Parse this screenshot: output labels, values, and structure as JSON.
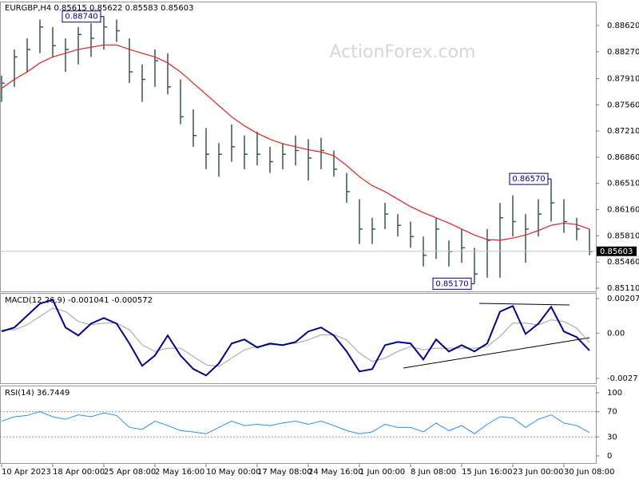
{
  "chart_data": [
    {
      "type": "ohlc",
      "title": "EURGBP,H4",
      "header_values": [
        0.85615,
        0.85622,
        0.85583,
        0.85603
      ],
      "watermark": "ActionForex.com",
      "categories": [
        "10 Apr 2023",
        null,
        null,
        null,
        "18 Apr 00:00",
        null,
        null,
        null,
        "25 Apr 08:00",
        null,
        null,
        null,
        "2 May 16:00",
        null,
        null,
        null,
        "10 May 00:00",
        null,
        null,
        null,
        "17 May 08:00",
        null,
        null,
        null,
        "24 May 16:00",
        null,
        null,
        null,
        "1 Jun 00:00",
        null,
        null,
        null,
        "8 Jun 08:00",
        null,
        null,
        null,
        "15 Jun 16:00",
        null,
        null,
        null,
        "23 Jun 00:00",
        null,
        null,
        null,
        "30 Jun 08:00",
        null,
        null
      ],
      "high": [
        0.8795,
        0.883,
        0.8845,
        0.887,
        0.886,
        0.8845,
        0.886,
        0.8865,
        0.8874,
        0.887,
        0.8845,
        0.881,
        0.883,
        0.8825,
        0.879,
        0.875,
        0.8725,
        0.8705,
        0.873,
        0.8715,
        0.872,
        0.87,
        0.8705,
        0.8715,
        0.871,
        0.8712,
        0.8695,
        0.8665,
        0.863,
        0.8605,
        0.8625,
        0.861,
        0.86,
        0.858,
        0.8605,
        0.8575,
        0.859,
        0.8565,
        0.859,
        0.8625,
        0.8635,
        0.861,
        0.863,
        0.8657,
        0.863,
        0.8605,
        0.859
      ],
      "low": [
        0.876,
        0.878,
        0.88,
        0.8825,
        0.882,
        0.88,
        0.881,
        0.882,
        0.883,
        0.884,
        0.8785,
        0.876,
        0.878,
        0.877,
        0.873,
        0.87,
        0.867,
        0.866,
        0.868,
        0.867,
        0.8675,
        0.8665,
        0.867,
        0.8675,
        0.8655,
        0.867,
        0.866,
        0.8625,
        0.857,
        0.857,
        0.859,
        0.858,
        0.8565,
        0.854,
        0.855,
        0.854,
        0.8545,
        0.8517,
        0.8525,
        0.8525,
        0.858,
        0.8545,
        0.858,
        0.86,
        0.8585,
        0.8575,
        0.8555
      ],
      "close": [
        0.8785,
        0.882,
        0.883,
        0.886,
        0.8835,
        0.883,
        0.885,
        0.8845,
        0.886,
        0.8855,
        0.88,
        0.879,
        0.8815,
        0.878,
        0.874,
        0.8715,
        0.869,
        0.869,
        0.87,
        0.869,
        0.869,
        0.868,
        0.869,
        0.8695,
        0.8685,
        0.8695,
        0.867,
        0.864,
        0.859,
        0.859,
        0.861,
        0.8595,
        0.858,
        0.8555,
        0.859,
        0.856,
        0.8565,
        0.853,
        0.8575,
        0.8605,
        0.86,
        0.859,
        0.861,
        0.8625,
        0.86,
        0.859,
        0.856
      ],
      "color": "#3b5656",
      "moving_average": {
        "color": "#e0201e",
        "values": [
          0.8778,
          0.879,
          0.88,
          0.8812,
          0.882,
          0.8825,
          0.883,
          0.8833,
          0.8836,
          0.8836,
          0.883,
          0.8825,
          0.882,
          0.8812,
          0.88,
          0.8785,
          0.877,
          0.8755,
          0.874,
          0.8728,
          0.8718,
          0.871,
          0.8704,
          0.87,
          0.8696,
          0.8693,
          0.8688,
          0.8675,
          0.866,
          0.8648,
          0.864,
          0.863,
          0.862,
          0.8612,
          0.8605,
          0.8598,
          0.859,
          0.8582,
          0.8576,
          0.8575,
          0.8578,
          0.8582,
          0.8588,
          0.8595,
          0.8598,
          0.8596,
          0.859
        ]
      },
      "ylim": [
        0.85067,
        0.88929
      ],
      "yticks": [
        {
          "value": 0.8862,
          "label": "0.88620"
        },
        {
          "value": 0.8827,
          "label": "0.88270"
        },
        {
          "value": 0.8791,
          "label": "0.87910"
        },
        {
          "value": 0.8756,
          "label": "0.87560"
        },
        {
          "value": 0.8721,
          "label": "0.87210"
        },
        {
          "value": 0.8686,
          "label": "0.86860"
        },
        {
          "value": 0.8651,
          "label": "0.86510"
        },
        {
          "value": 0.8616,
          "label": "0.86160"
        },
        {
          "value": 0.8581,
          "label": "0.85810"
        },
        {
          "value": 0.8546,
          "label": "0.85460"
        },
        {
          "value": 0.8511,
          "label": "0.85110"
        }
      ],
      "annotations": [
        {
          "value": 0.8874,
          "label": "0.88740"
        },
        {
          "value": 0.8657,
          "label": "0.86570"
        },
        {
          "value": 0.8517,
          "label": "0.85170"
        }
      ],
      "last_price": 0.85603
    },
    {
      "type": "macd",
      "title": "MACD(12,26,9)",
      "header_values": [
        -0.001041,
        -0.000572
      ],
      "main": {
        "color": "#00008b",
        "values": [
          0.0001,
          0.00034,
          0.00105,
          0.00177,
          0.002,
          0.00034,
          -0.00014,
          0.00057,
          0.00091,
          0.00057,
          -0.00062,
          -0.00196,
          -0.00134,
          -0.00014,
          -0.00134,
          -0.00215,
          -0.00254,
          -0.00182,
          -0.00062,
          -0.00038,
          -0.00086,
          -0.00062,
          -0.00072,
          -0.00053,
          0.0001,
          0.00034,
          -0.00014,
          -0.0011,
          -0.0023,
          -0.00216,
          -0.00072,
          -0.00053,
          -0.00062,
          -0.00158,
          -0.00038,
          -0.0011,
          -0.00072,
          -0.0011,
          -0.00062,
          0.00129,
          0.00163,
          -5e-05,
          0.00057,
          0.00158,
          0.0001,
          -0.00024,
          -0.00104
        ]
      },
      "signal": {
        "color": "#a0a0a0",
        "values": [
          0.0002,
          0.0002,
          0.0005,
          0.001,
          0.0015,
          0.0013,
          0.0007,
          0.0005,
          0.0006,
          0.0006,
          0.0002,
          -0.0007,
          -0.0011,
          -0.0009,
          -0.0009,
          -0.0014,
          -0.0019,
          -0.002,
          -0.0015,
          -0.001,
          -0.0008,
          -0.0007,
          -0.0007,
          -0.0006,
          -0.0004,
          -0.0001,
          -0.0001,
          -0.0004,
          -0.0012,
          -0.0017,
          -0.0015,
          -0.0011,
          -0.0008,
          -0.001,
          -0.0009,
          -0.0009,
          -0.0009,
          -0.0009,
          -0.0008,
          -0.0002,
          0.0006,
          0.0006,
          0.0005,
          0.0008,
          0.0007,
          0.0003,
          -0.00057
        ]
      },
      "ylim": [
        -0.003003,
        0.002361
      ],
      "yticks": [
        0.002074,
        {
          "value": 0,
          "label": "0.00"
        },
        -0.002716
      ]
    },
    {
      "type": "rsi",
      "title": "RSI(14)",
      "header_values": [
        36.7449
      ],
      "color": "#1e90ff",
      "values": [
        55,
        62,
        64,
        70,
        62,
        58,
        65,
        62,
        68,
        64,
        45,
        42,
        55,
        48,
        40,
        38,
        35,
        45,
        55,
        48,
        50,
        48,
        52,
        55,
        50,
        55,
        48,
        40,
        35,
        38,
        50,
        45,
        45,
        38,
        52,
        40,
        48,
        35,
        50,
        62,
        60,
        45,
        58,
        65,
        52,
        48,
        37
      ],
      "ylim": [
        -11.4,
        110.1
      ],
      "yticks": [
        100,
        70,
        30,
        0
      ],
      "levels": [
        70,
        30
      ]
    }
  ]
}
